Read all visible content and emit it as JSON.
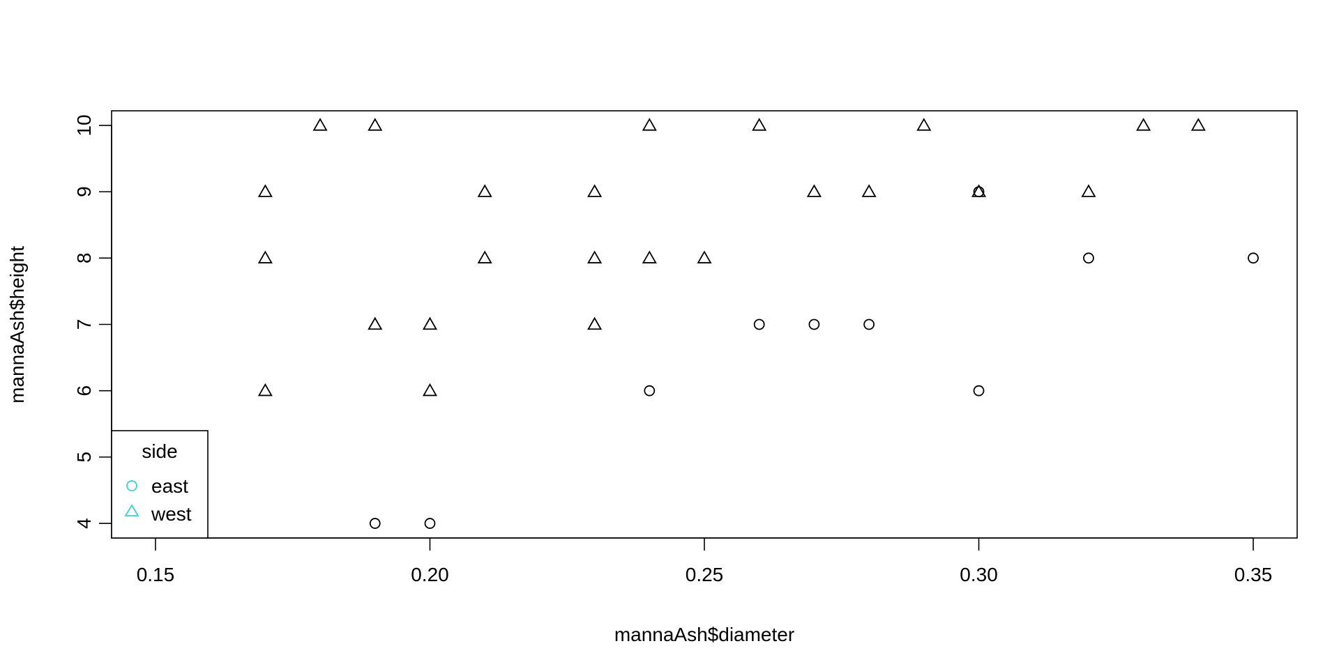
{
  "chart_data": {
    "type": "scatter",
    "xlabel": "mannaAsh$diameter",
    "ylabel": "mannaAsh$height",
    "xlim": [
      0.142,
      0.358
    ],
    "ylim": [
      3.78,
      10.22
    ],
    "x_ticks": [
      "0.15",
      "0.20",
      "0.25",
      "0.30",
      "0.35"
    ],
    "y_ticks": [
      "4",
      "5",
      "6",
      "7",
      "8",
      "9",
      "10"
    ],
    "grid": false,
    "legend": {
      "title": "side",
      "position": "bottom-left",
      "entries": [
        {
          "label": "east",
          "marker": "circle",
          "color": "#33d6d6"
        },
        {
          "label": "west",
          "marker": "triangle",
          "color": "#33d6d6"
        }
      ]
    },
    "series": [
      {
        "name": "east",
        "marker": "circle",
        "color": "#000000",
        "points": [
          [
            0.19,
            4
          ],
          [
            0.2,
            4
          ],
          [
            0.24,
            6
          ],
          [
            0.26,
            7
          ],
          [
            0.27,
            7
          ],
          [
            0.28,
            7
          ],
          [
            0.3,
            6
          ],
          [
            0.3,
            9
          ],
          [
            0.32,
            8
          ],
          [
            0.35,
            8
          ]
        ]
      },
      {
        "name": "west",
        "marker": "triangle",
        "color": "#000000",
        "points": [
          [
            0.17,
            9
          ],
          [
            0.17,
            8
          ],
          [
            0.17,
            6
          ],
          [
            0.18,
            10
          ],
          [
            0.19,
            10
          ],
          [
            0.19,
            7
          ],
          [
            0.2,
            7
          ],
          [
            0.2,
            6
          ],
          [
            0.21,
            9
          ],
          [
            0.21,
            8
          ],
          [
            0.23,
            9
          ],
          [
            0.23,
            8
          ],
          [
            0.23,
            7
          ],
          [
            0.24,
            10
          ],
          [
            0.24,
            8
          ],
          [
            0.25,
            8
          ],
          [
            0.26,
            10
          ],
          [
            0.27,
            9
          ],
          [
            0.28,
            9
          ],
          [
            0.29,
            10
          ],
          [
            0.3,
            9
          ],
          [
            0.32,
            9
          ],
          [
            0.33,
            10
          ],
          [
            0.34,
            10
          ]
        ]
      }
    ]
  }
}
